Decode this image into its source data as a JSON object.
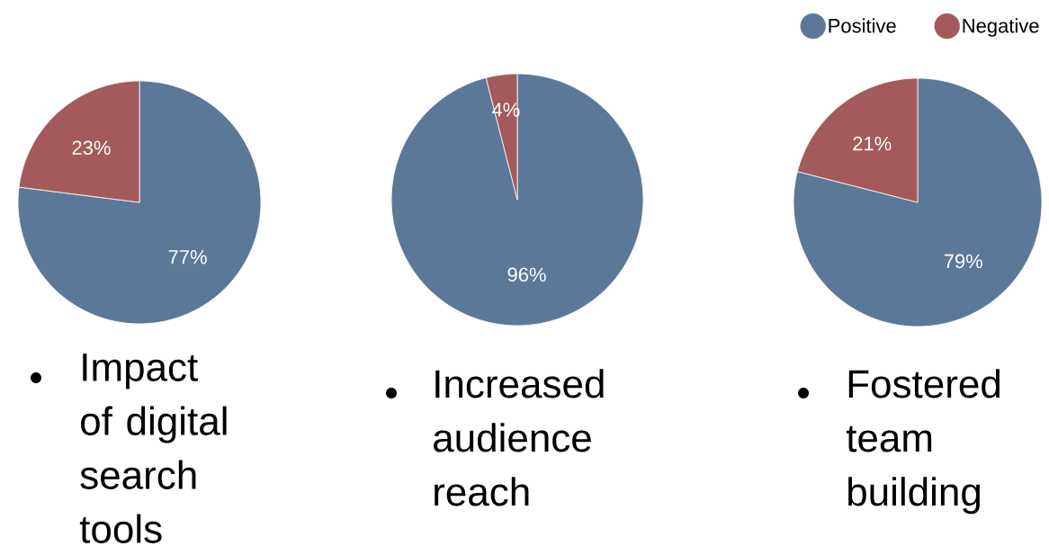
{
  "chart_data": [
    {
      "type": "pie",
      "title": "Impact of digital search tools",
      "categories": [
        null,
        null
      ],
      "values": [
        77,
        23
      ],
      "colors": [
        "#5b7899",
        "#a45a5a"
      ],
      "value_labels": [
        "77%",
        "23%"
      ]
    },
    {
      "type": "pie",
      "title": "Increased audience reach",
      "categories": [
        null,
        null
      ],
      "values": [
        96,
        4
      ],
      "colors": [
        "#5b7899",
        "#a45a5a"
      ],
      "value_labels": [
        "96%",
        "4%"
      ]
    },
    {
      "type": "pie",
      "title": "Fostered team building",
      "categories": [
        "Positive",
        "Negative"
      ],
      "values": [
        79,
        21
      ],
      "colors": [
        "#5b7899",
        "#a45a5a"
      ],
      "value_labels": [
        "79%",
        "21%"
      ],
      "legend": "top right"
    }
  ]
}
